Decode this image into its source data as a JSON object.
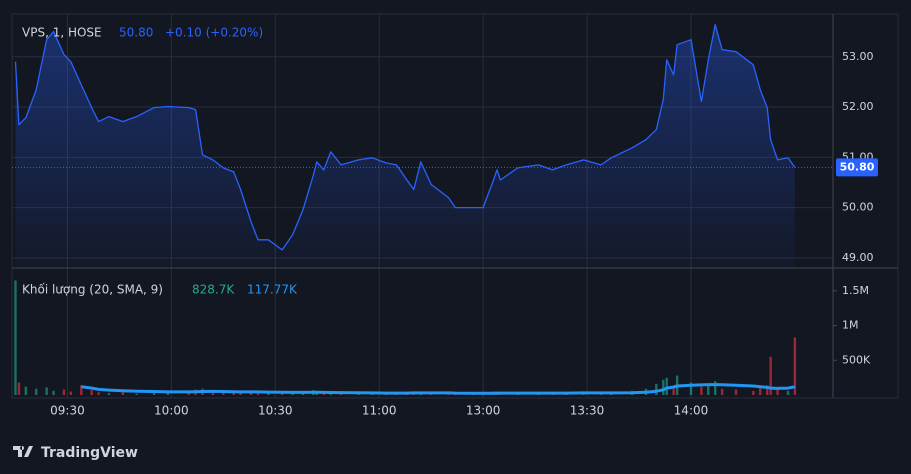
{
  "chart_data": {
    "type": "area",
    "symbol": "VPS, 1, HOSE",
    "price_text": "50.80",
    "change_text": "+0.10 (+0.20%)",
    "brand": "TradingView",
    "color": "#2962ff",
    "grid": true,
    "x": [
      0,
      1,
      3,
      6,
      9,
      11,
      14,
      16,
      19,
      22,
      24,
      27,
      31,
      35,
      40,
      44,
      50,
      52,
      54,
      57,
      60,
      63,
      65,
      68,
      70,
      73,
      77,
      80,
      83,
      86,
      87,
      89,
      91,
      94,
      99,
      103,
      107,
      110,
      113,
      115,
      117,
      120,
      125,
      127,
      132,
      135,
      138,
      139,
      140,
      145,
      151,
      155,
      159,
      164,
      169,
      172,
      178,
      182,
      185,
      187,
      188,
      190,
      191,
      195,
      198,
      200,
      202,
      204,
      208,
      213,
      215,
      217,
      218,
      220,
      223,
      225
    ],
    "values": [
      52.9,
      51.65,
      51.79,
      52.34,
      53.34,
      53.5,
      53.04,
      52.9,
      52.44,
      51.99,
      51.71,
      51.81,
      51.71,
      51.81,
      51.99,
      52.01,
      51.99,
      51.95,
      51.05,
      50.95,
      50.79,
      50.71,
      50.36,
      49.72,
      49.36,
      49.36,
      49.16,
      49.46,
      49.96,
      50.65,
      50.91,
      50.75,
      51.11,
      50.85,
      50.95,
      50.99,
      50.89,
      50.85,
      50.55,
      50.36,
      50.91,
      50.46,
      50.2,
      50,
      50,
      50,
      50.55,
      50.75,
      50.55,
      50.79,
      50.85,
      50.75,
      50.85,
      50.95,
      50.85,
      50.99,
      51.19,
      51.35,
      51.55,
      52.15,
      52.94,
      52.64,
      53.24,
      53.34,
      52.11,
      52.94,
      53.64,
      53.14,
      53.1,
      52.84,
      52.34,
      51.99,
      51.35,
      50.95,
      50.99,
      50.8
    ],
    "last_price": {
      "value": 50.8,
      "label": "50.80"
    },
    "xlim": [
      -1,
      236
    ],
    "xticks": [
      {
        "value": 15,
        "label": "09:30"
      },
      {
        "value": 45,
        "label": "10:00"
      },
      {
        "value": 75,
        "label": "10:30"
      },
      {
        "value": 105,
        "label": "11:00"
      },
      {
        "value": 135,
        "label": "13:00"
      },
      {
        "value": 165,
        "label": "13:30"
      },
      {
        "value": 195,
        "label": "14:00"
      }
    ],
    "ylim": [
      48.8,
      53.85
    ],
    "yticks": [
      {
        "value": 49,
        "label": "49.00"
      },
      {
        "value": 50,
        "label": "50.00"
      },
      {
        "value": 51,
        "label": "51.00"
      },
      {
        "value": 52,
        "label": "52.00"
      },
      {
        "value": 53,
        "label": "53.00"
      }
    ],
    "volume": {
      "title": "Khối lượng (20, SMA, 9)",
      "last_text": "828.7K",
      "ma_text": "117.77K",
      "up_color": "#22ab94",
      "down_color": "#f23645",
      "ma_color": "#2196f3",
      "values": [
        1650000,
        180000,
        120000,
        90000,
        110000,
        60000,
        80000,
        50000,
        140000,
        70000,
        40000,
        30000,
        50000,
        20000,
        40000,
        30000,
        60000,
        80000,
        90000,
        50000,
        40000,
        30000,
        60000,
        40000,
        50000,
        30000,
        40000,
        20000,
        50000,
        70000,
        30000,
        20000,
        40000,
        30000,
        20000,
        30000,
        20000,
        40000,
        30000,
        50000,
        20000,
        40000,
        30000,
        20000,
        10000,
        20000,
        50000,
        30000,
        40000,
        20000,
        30000,
        20000,
        30000,
        40000,
        30000,
        20000,
        60000,
        90000,
        160000,
        220000,
        250000,
        130000,
        280000,
        180000,
        120000,
        150000,
        200000,
        90000,
        80000,
        60000,
        110000,
        140000,
        550000,
        80000,
        60000,
        828700
      ],
      "ma": [
        null,
        null,
        null,
        null,
        null,
        null,
        null,
        null,
        120000,
        100000,
        80000,
        70000,
        60000,
        55000,
        50000,
        45000,
        45000,
        48000,
        50000,
        52000,
        50000,
        48000,
        45000,
        45000,
        45000,
        42000,
        40000,
        38000,
        38000,
        40000,
        40000,
        38000,
        36000,
        34000,
        32000,
        30000,
        28000,
        28000,
        28000,
        30000,
        30000,
        30000,
        30000,
        28000,
        26000,
        25000,
        26000,
        27000,
        28000,
        28000,
        28000,
        28000,
        28000,
        30000,
        30000,
        30000,
        32000,
        40000,
        55000,
        75000,
        100000,
        115000,
        130000,
        140000,
        145000,
        150000,
        150000,
        148000,
        140000,
        130000,
        120000,
        110000,
        100000,
        95000,
        100000,
        117770
      ],
      "ylim": [
        0,
        1800000
      ],
      "yticks": [
        {
          "value": 500000,
          "label": "500K"
        },
        {
          "value": 1000000,
          "label": "1M"
        },
        {
          "value": 1500000,
          "label": "1.5M"
        }
      ]
    }
  }
}
